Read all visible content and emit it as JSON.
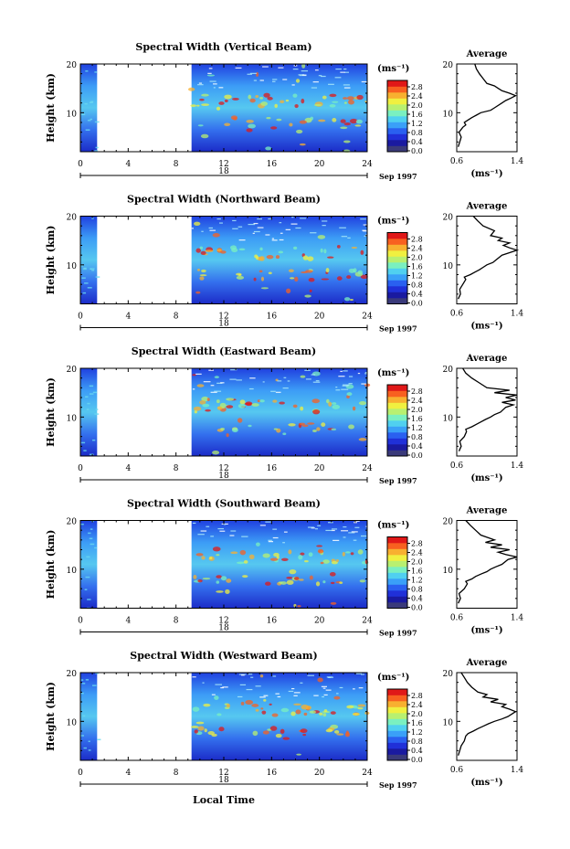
{
  "figure": {
    "xlabel": "Local Time",
    "ylabel": "Height (km)",
    "date_label": "Sep 1997",
    "day_label": "18",
    "unit_label": "(ms⁻¹)",
    "average_title": "Average",
    "average_xlabel": "(ms⁻¹)",
    "colorbar_ticks": [
      "0.0",
      "0.4",
      "0.8",
      "1.2",
      "1.6",
      "2.0",
      "2.4",
      "2.8"
    ],
    "colorbar_colors": [
      "#3a3a7a",
      "#1a1aa0",
      "#2030d8",
      "#2a60f0",
      "#3aa0f8",
      "#50d0f0",
      "#7af0c0",
      "#b8f070",
      "#f0f040",
      "#f8b030",
      "#f86020",
      "#e01818"
    ],
    "colors": {
      "line": "#000000",
      "background": "#ffffff"
    }
  },
  "chart_data": [
    {
      "type": "heatmap",
      "title": "Spectral Width (Vertical Beam)",
      "xlabel": "Local Time",
      "ylabel": "Height (km)",
      "xlim": [
        0,
        24
      ],
      "ylim": [
        2,
        20
      ],
      "xticks": [
        0,
        4,
        8,
        12,
        16,
        20,
        24
      ],
      "yticks": [
        10,
        20
      ],
      "data_gaps_hours": [
        [
          0,
          1.4
        ],
        [
          1.4,
          9.3
        ]
      ],
      "data_start_hours": 1.4,
      "gap_end_hours": 9.3,
      "colorbar": {
        "label": "(ms⁻¹)",
        "range": [
          0.0,
          2.8
        ]
      },
      "average_profile": {
        "title": "Average",
        "xlabel": "(ms⁻¹)",
        "xlim": [
          0.6,
          1.4
        ],
        "ylim": [
          2,
          20
        ],
        "x": [
          0.62,
          0.64,
          0.66,
          0.63,
          0.68,
          0.72,
          0.7,
          0.75,
          0.8,
          0.86,
          0.92,
          1.05,
          1.1,
          1.2,
          1.25,
          1.32,
          1.38,
          1.3,
          1.2,
          1.15,
          1.1,
          1.0,
          0.95,
          0.9,
          0.86,
          0.84
        ],
        "y": [
          3,
          4,
          5,
          6,
          7,
          7.5,
          8,
          8.5,
          9,
          9.5,
          10,
          10.5,
          11,
          12,
          12.5,
          13,
          13.5,
          14,
          14.5,
          15,
          15.5,
          16,
          17,
          18,
          19,
          20
        ]
      }
    },
    {
      "type": "heatmap",
      "title": "Spectral Width (Northward Beam)",
      "xlabel": "Local Time",
      "ylabel": "Height (km)",
      "xlim": [
        0,
        24
      ],
      "ylim": [
        2,
        20
      ],
      "xticks": [
        0,
        4,
        8,
        12,
        16,
        20,
        24
      ],
      "yticks": [
        10,
        20
      ],
      "data_start_hours": 1.4,
      "gap_end_hours": 9.3,
      "colorbar": {
        "label": "(ms⁻¹)",
        "range": [
          0.0,
          2.8
        ]
      },
      "average_profile": {
        "title": "Average",
        "xlabel": "(ms⁻¹)",
        "xlim": [
          0.6,
          1.4
        ],
        "ylim": [
          2,
          20
        ],
        "x": [
          0.62,
          0.65,
          0.64,
          0.68,
          0.72,
          0.7,
          0.78,
          0.84,
          0.9,
          0.95,
          1.0,
          1.08,
          1.12,
          1.2,
          1.3,
          1.4,
          1.3,
          1.22,
          1.3,
          1.15,
          1.2,
          1.05,
          1.1,
          0.95,
          0.88,
          0.82
        ],
        "y": [
          3,
          4,
          5,
          6,
          7,
          7.5,
          8,
          8.5,
          9,
          9.5,
          10,
          10.5,
          11,
          12,
          12.5,
          13,
          13.5,
          14,
          14.5,
          15,
          15.5,
          16,
          17,
          18,
          19,
          20
        ]
      }
    },
    {
      "type": "heatmap",
      "title": "Spectral Width (Eastward Beam)",
      "xlabel": "Local Time",
      "ylabel": "Height (km)",
      "xlim": [
        0,
        24
      ],
      "ylim": [
        2,
        20
      ],
      "xticks": [
        0,
        4,
        8,
        12,
        16,
        20,
        24
      ],
      "yticks": [
        10,
        20
      ],
      "data_start_hours": 1.4,
      "gap_end_hours": 9.3,
      "colorbar": {
        "label": "(ms⁻¹)",
        "range": [
          0.0,
          2.8
        ]
      },
      "average_profile": {
        "title": "Average",
        "xlabel": "(ms⁻¹)",
        "xlim": [
          0.6,
          1.4
        ],
        "ylim": [
          2,
          20
        ],
        "x": [
          0.63,
          0.66,
          0.64,
          0.7,
          0.73,
          0.72,
          0.8,
          0.86,
          0.92,
          0.98,
          1.05,
          1.1,
          1.18,
          1.25,
          1.35,
          1.2,
          1.38,
          1.25,
          1.4,
          1.1,
          1.3,
          1.0,
          0.9,
          0.8,
          0.72,
          0.68
        ],
        "y": [
          3,
          4,
          5,
          6,
          7,
          7.5,
          8,
          8.5,
          9,
          9.5,
          10,
          10.5,
          11,
          12,
          12.5,
          13,
          13.5,
          14,
          14.5,
          15,
          15.5,
          16,
          17,
          18,
          19,
          20
        ]
      }
    },
    {
      "type": "heatmap",
      "title": "Spectral Width (Southward Beam)",
      "xlabel": "Local Time",
      "ylabel": "Height (km)",
      "xlim": [
        0,
        24
      ],
      "ylim": [
        2,
        20
      ],
      "xticks": [
        0,
        4,
        8,
        12,
        16,
        20,
        24
      ],
      "yticks": [
        10,
        20
      ],
      "data_start_hours": 1.4,
      "gap_end_hours": 9.3,
      "colorbar": {
        "label": "(ms⁻¹)",
        "range": [
          0.0,
          2.8
        ]
      },
      "average_profile": {
        "title": "Average",
        "xlabel": "(ms⁻¹)",
        "xlim": [
          0.6,
          1.4
        ],
        "ylim": [
          2,
          20
        ],
        "x": [
          0.62,
          0.65,
          0.63,
          0.7,
          0.74,
          0.72,
          0.8,
          0.85,
          0.92,
          1.0,
          1.05,
          1.12,
          1.2,
          1.28,
          1.4,
          1.25,
          1.15,
          1.3,
          1.05,
          1.2,
          0.98,
          1.1,
          0.92,
          0.85,
          0.78,
          0.72
        ],
        "y": [
          3,
          4,
          5,
          6,
          7,
          7.5,
          8,
          8.5,
          9,
          9.5,
          10,
          10.5,
          11,
          12,
          12.5,
          13,
          13.5,
          14,
          14.5,
          15,
          15.5,
          16,
          17,
          18,
          19,
          20
        ]
      }
    },
    {
      "type": "heatmap",
      "title": "Spectral Width (Westward Beam)",
      "xlabel": "Local Time",
      "ylabel": "Height (km)",
      "xlim": [
        0,
        24
      ],
      "ylim": [
        2,
        20
      ],
      "xticks": [
        0,
        4,
        8,
        12,
        16,
        20,
        24
      ],
      "yticks": [
        10,
        20
      ],
      "data_start_hours": 1.4,
      "gap_end_hours": 9.3,
      "colorbar": {
        "label": "(ms⁻¹)",
        "range": [
          0.0,
          2.8
        ]
      },
      "average_profile": {
        "title": "Average",
        "xlabel": "(ms⁻¹)",
        "xlim": [
          0.6,
          1.4
        ],
        "ylim": [
          2,
          20
        ],
        "x": [
          0.62,
          0.64,
          0.66,
          0.7,
          0.72,
          0.75,
          0.82,
          0.88,
          0.95,
          1.02,
          1.1,
          1.2,
          1.28,
          1.38,
          1.3,
          1.2,
          1.25,
          1.05,
          1.15,
          0.95,
          1.0,
          0.88,
          0.8,
          0.74,
          0.7,
          0.66
        ],
        "y": [
          3,
          4,
          5,
          6,
          7,
          7.5,
          8,
          8.5,
          9,
          9.5,
          10,
          10.5,
          11,
          12,
          12.5,
          13,
          13.5,
          14,
          14.5,
          15,
          15.5,
          16,
          17,
          18,
          19,
          20
        ]
      }
    }
  ]
}
